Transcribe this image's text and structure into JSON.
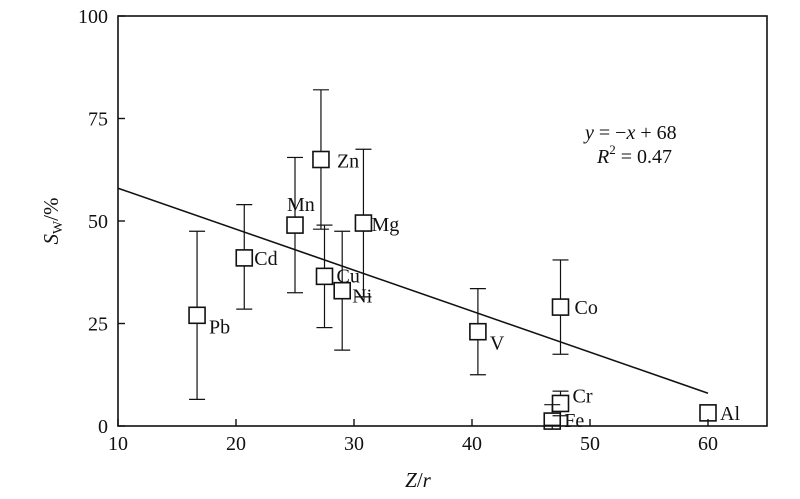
{
  "chart_data": {
    "type": "scatter",
    "xlabel": {
      "main": "Z",
      "sep": "/",
      "unit": "r"
    },
    "ylabel": {
      "main": "S",
      "sub": "W",
      "unit": "/%"
    },
    "xlim": [
      10,
      65
    ],
    "ylim": [
      0,
      100
    ],
    "xticks": [
      10,
      20,
      30,
      40,
      50,
      60
    ],
    "yticks": [
      0,
      25,
      50,
      75,
      100
    ],
    "grid": false,
    "points": [
      {
        "label": "Pb",
        "x": 16.7,
        "y": 27,
        "err_low": 20.5,
        "err_high": 20.5
      },
      {
        "label": "Cd",
        "x": 20.7,
        "y": 41,
        "err_low": 12.5,
        "err_high": 13
      },
      {
        "label": "Mn",
        "x": 25.0,
        "y": 49,
        "err_low": 16.5,
        "err_high": 16.5
      },
      {
        "label": "Zn",
        "x": 27.2,
        "y": 65,
        "err_low": 17,
        "err_high": 17
      },
      {
        "label": "Cu",
        "x": 27.5,
        "y": 36.5,
        "err_low": 12.5,
        "err_high": 12.5
      },
      {
        "label": "Ni",
        "x": 29.0,
        "y": 33,
        "err_low": 14.5,
        "err_high": 14.5
      },
      {
        "label": "Mg",
        "x": 30.8,
        "y": 49.5,
        "err_low": 18,
        "err_high": 18
      },
      {
        "label": "V",
        "x": 40.5,
        "y": 23,
        "err_low": 10.5,
        "err_high": 10.5
      },
      {
        "label": "Co",
        "x": 47.5,
        "y": 29,
        "err_low": 11.5,
        "err_high": 11.5
      },
      {
        "label": "Cr",
        "x": 47.5,
        "y": 5.5,
        "err_low": 3,
        "err_high": 3
      },
      {
        "label": "Fe",
        "x": 46.8,
        "y": 1.2,
        "err_low": 1,
        "err_high": 4
      },
      {
        "label": "Al",
        "x": 60.0,
        "y": 3.2,
        "err_low": 0,
        "err_high": 0
      }
    ],
    "fit_line": {
      "slope": -1,
      "intercept": 68,
      "x_range": [
        10,
        60
      ]
    },
    "annotation": {
      "equation": {
        "y": "y",
        "rhs": " = −",
        "x": "x",
        "tail": " + 68"
      },
      "r2": {
        "r": "R",
        "sup": "2",
        "tail": " = 0.47"
      }
    }
  }
}
